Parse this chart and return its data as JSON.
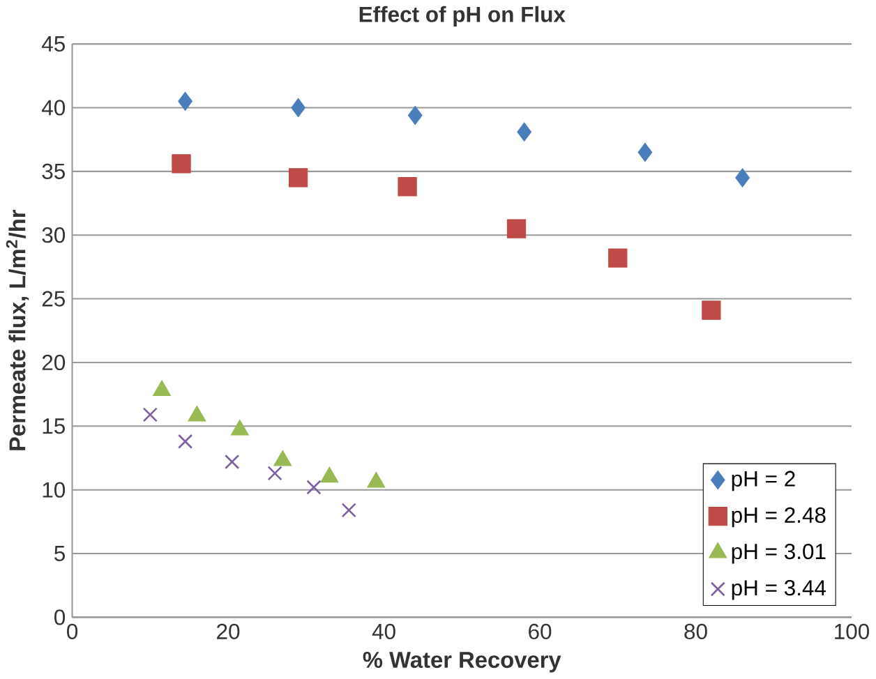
{
  "chart_data": {
    "type": "scatter",
    "title": "Effect of pH on Flux",
    "xlabel": "% Water Recovery",
    "ylabel": "Permeate flux, L/m$^{2}$/hr",
    "xlim": [
      0,
      100
    ],
    "xticks": [
      0,
      20,
      40,
      60,
      80,
      100
    ],
    "ylim": [
      0,
      45
    ],
    "yticks": [
      0,
      5,
      10,
      15,
      20,
      25,
      30,
      35,
      40,
      45
    ],
    "grid": "y",
    "legend": "bottom right",
    "series": [
      {
        "name": "pH = 2",
        "color": "#4a7ebb",
        "marker": "diamond",
        "x": [
          14.5,
          29,
          44,
          58,
          73.5,
          86
        ],
        "values": [
          40.5,
          40.0,
          39.4,
          38.1,
          36.5,
          34.5
        ]
      },
      {
        "name": "pH = 2.48",
        "color": "#be4b48",
        "marker": "square",
        "x": [
          14,
          29,
          43,
          57,
          70,
          82
        ],
        "values": [
          35.6,
          34.5,
          33.8,
          30.5,
          28.2,
          24.1
        ]
      },
      {
        "name": "pH = 3.01",
        "color": "#98b954",
        "marker": "triangle",
        "x": [
          11.5,
          16,
          21.5,
          27,
          33,
          39
        ],
        "values": [
          17.8,
          15.8,
          14.7,
          12.3,
          11.0,
          10.6
        ]
      },
      {
        "name": "pH = 3.44",
        "color": "#7d60a0",
        "marker": "cross",
        "x": [
          10,
          14.5,
          20.5,
          26,
          31,
          35.5
        ],
        "values": [
          15.9,
          13.8,
          12.2,
          11.3,
          10.2,
          8.4
        ]
      }
    ]
  }
}
